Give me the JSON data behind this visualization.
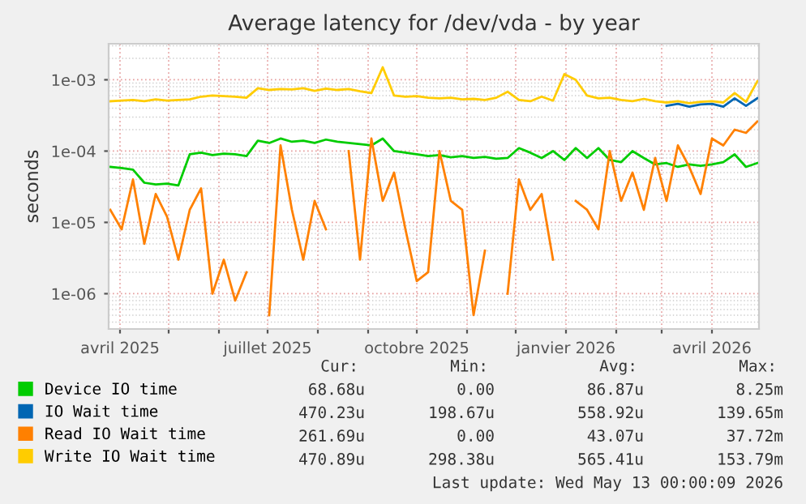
{
  "chart_data": {
    "type": "line",
    "title": "Average latency for /dev/vda - by year",
    "ylabel": "seconds",
    "x": [
      "2025-03-26",
      "2025-04-02",
      "2025-04-09",
      "2025-04-16",
      "2025-04-23",
      "2025-04-30",
      "2025-05-07",
      "2025-05-14",
      "2025-05-21",
      "2025-05-28",
      "2025-06-04",
      "2025-06-11",
      "2025-06-18",
      "2025-06-25",
      "2025-07-02",
      "2025-07-09",
      "2025-07-16",
      "2025-07-23",
      "2025-07-30",
      "2025-08-06",
      "2025-08-13",
      "2025-08-20",
      "2025-08-27",
      "2025-09-03",
      "2025-09-10",
      "2025-09-17",
      "2025-09-24",
      "2025-10-01",
      "2025-10-08",
      "2025-10-15",
      "2025-10-22",
      "2025-10-29",
      "2025-11-05",
      "2025-11-12",
      "2025-11-19",
      "2025-11-26",
      "2025-12-03",
      "2025-12-10",
      "2025-12-17",
      "2025-12-24",
      "2025-12-31",
      "2026-01-07",
      "2026-01-14",
      "2026-01-21",
      "2026-01-28",
      "2026-02-04",
      "2026-02-11",
      "2026-02-18",
      "2026-02-25",
      "2026-03-04",
      "2026-03-11",
      "2026-03-18",
      "2026-03-25",
      "2026-04-01",
      "2026-04-08",
      "2026-04-15",
      "2026-04-22",
      "2026-04-29"
    ],
    "series": [
      {
        "name": "Device IO time",
        "color": "#00cc00",
        "values": [
          6e-05,
          5.8e-05,
          5.5e-05,
          3.6e-05,
          3.4e-05,
          3.5e-05,
          3.3e-05,
          9e-05,
          9.5e-05,
          8.8e-05,
          9.2e-05,
          9e-05,
          8.5e-05,
          0.00014,
          0.00013,
          0.00015,
          0.000135,
          0.00014,
          0.00013,
          0.000145,
          0.000135,
          0.00013,
          0.000125,
          0.00012,
          0.00015,
          0.0001,
          9.5e-05,
          9e-05,
          8.5e-05,
          8.8e-05,
          8.2e-05,
          8.5e-05,
          8e-05,
          8.3e-05,
          7.8e-05,
          8e-05,
          0.00011,
          9.5e-05,
          8e-05,
          0.0001,
          7.5e-05,
          0.00011,
          8e-05,
          0.00011,
          7.5e-05,
          7e-05,
          0.0001,
          8e-05,
          6.5e-05,
          6.8e-05,
          6e-05,
          6.5e-05,
          6.2e-05,
          6.5e-05,
          7e-05,
          9e-05,
          6e-05,
          6.8e-05
        ]
      },
      {
        "name": "IO Wait time",
        "color": "#0066b3",
        "values": [
          null,
          null,
          null,
          null,
          null,
          null,
          null,
          null,
          null,
          null,
          null,
          null,
          null,
          null,
          null,
          null,
          null,
          null,
          null,
          null,
          null,
          null,
          null,
          null,
          null,
          null,
          null,
          null,
          null,
          null,
          null,
          null,
          null,
          null,
          null,
          null,
          null,
          null,
          null,
          null,
          null,
          null,
          null,
          null,
          null,
          null,
          null,
          null,
          null,
          0.00043,
          0.00046,
          0.00042,
          0.00045,
          0.00046,
          0.00042,
          0.00055,
          0.00043,
          0.00055
        ]
      },
      {
        "name": "Read IO Wait time",
        "color": "#ff8000",
        "values": [
          1.5e-05,
          8e-06,
          4e-05,
          5e-06,
          2.5e-05,
          1.2e-05,
          3e-06,
          1.5e-05,
          3e-05,
          1e-06,
          3e-06,
          8e-07,
          2e-06,
          null,
          5e-07,
          0.00012,
          1.5e-05,
          3e-06,
          2e-05,
          8e-06,
          null,
          0.0001,
          3e-06,
          0.00015,
          2e-05,
          5e-05,
          8e-06,
          1.5e-06,
          2e-06,
          0.0001,
          2e-05,
          1.5e-05,
          5e-07,
          4e-06,
          null,
          1e-06,
          4e-05,
          1.5e-05,
          2.5e-05,
          3e-06,
          null,
          2e-05,
          1.5e-05,
          8e-06,
          0.0001,
          2e-05,
          5e-05,
          1.5e-05,
          8e-05,
          2e-05,
          0.00012,
          6e-05,
          2.5e-05,
          0.00015,
          0.00012,
          0.0002,
          0.00018,
          0.00026
        ]
      },
      {
        "name": "Write IO Wait time",
        "color": "#ffcc00",
        "values": [
          0.0005,
          0.00051,
          0.00052,
          0.0005,
          0.00053,
          0.00051,
          0.00052,
          0.00053,
          0.00058,
          0.0006,
          0.00059,
          0.00058,
          0.00056,
          0.00076,
          0.00072,
          0.00074,
          0.00073,
          0.00076,
          0.0007,
          0.00075,
          0.00072,
          0.00074,
          0.00069,
          0.00065,
          0.0015,
          0.0006,
          0.00058,
          0.00059,
          0.00056,
          0.00055,
          0.00056,
          0.00053,
          0.00054,
          0.00052,
          0.00056,
          0.00068,
          0.00052,
          0.0005,
          0.00058,
          0.00051,
          0.0012,
          0.001,
          0.0006,
          0.00055,
          0.00056,
          0.00052,
          0.0005,
          0.00054,
          0.0005,
          0.00048,
          0.0005,
          0.00047,
          0.00049,
          0.0005,
          0.00048,
          0.00065,
          0.00049,
          0.00095
        ]
      }
    ],
    "log": "y",
    "ylim": [
      3.2e-07,
      0.0032
    ],
    "yticks": [
      {
        "value": 1e-06,
        "label": "1e-06"
      },
      {
        "value": 1e-05,
        "label": "1e-05"
      },
      {
        "value": 0.0001,
        "label": "1e-04"
      },
      {
        "value": 0.001,
        "label": "1e-03"
      }
    ],
    "xlim": [
      "2025-03-25",
      "2026-04-30"
    ],
    "xticks": [
      {
        "value": "2025-04-01",
        "label": "avril 2025"
      },
      {
        "value": "2025-05-01",
        "label": null
      },
      {
        "value": "2025-06-01",
        "label": null
      },
      {
        "value": "2025-07-01",
        "label": "juillet 2025"
      },
      {
        "value": "2025-08-01",
        "label": null
      },
      {
        "value": "2025-09-01",
        "label": null
      },
      {
        "value": "2025-10-01",
        "label": "octobre 2025"
      },
      {
        "value": "2025-11-01",
        "label": null
      },
      {
        "value": "2025-12-01",
        "label": null
      },
      {
        "value": "2026-01-01",
        "label": "janvier 2026"
      },
      {
        "value": "2026-02-01",
        "label": null
      },
      {
        "value": "2026-03-01",
        "label": null
      },
      {
        "value": "2026-04-01",
        "label": "avril 2026"
      }
    ],
    "grid": true,
    "legend": "bottom left",
    "marker": "none",
    "line_style": "solid",
    "annotations": [
      "Cur:",
      "Min:",
      "Avg:",
      "Max:",
      "68.68u",
      "0.00",
      "86.87u",
      "8.25m",
      "470.23u",
      "198.67u",
      "558.92u",
      "139.65m",
      "261.69u",
      "0.00",
      "43.07u",
      "37.72m",
      "470.89u",
      "298.38u",
      "565.41u",
      "153.79m",
      "Last update: Wed May 13 00:00:09 2026"
    ]
  }
}
